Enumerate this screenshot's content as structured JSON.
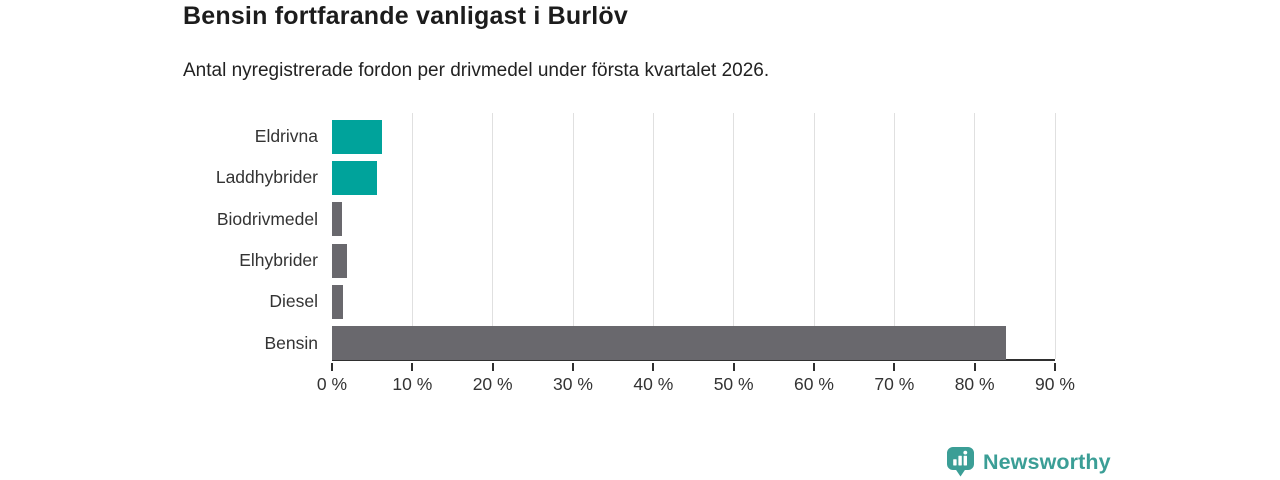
{
  "header": {
    "title": "Bensin fortfarande vanligast i Burlöv",
    "subtitle": "Antal nyregistrerade fordon per drivmedel under första kvartalet 2026."
  },
  "chart_data": {
    "type": "bar",
    "orientation": "horizontal",
    "title": "Bensin fortfarande vanligast i Burlöv",
    "subtitle": "Antal nyregistrerade fordon per drivmedel under första kvartalet 2026.",
    "categories": [
      "Eldrivna",
      "Laddhybrider",
      "Biodrivmedel",
      "Elhybrider",
      "Diesel",
      "Bensin"
    ],
    "values": [
      6.2,
      5.6,
      1.2,
      1.9,
      1.4,
      83.9
    ],
    "unit": "%",
    "bar_colors": [
      "#00a39b",
      "#00a39b",
      "#69686d",
      "#69686d",
      "#69686d",
      "#69686d"
    ],
    "xlim": [
      0,
      90
    ],
    "tick_values": [
      0,
      10,
      20,
      30,
      40,
      50,
      60,
      70,
      80,
      90
    ],
    "tick_labels": [
      "0 %",
      "10 %",
      "20 %",
      "30 %",
      "40 %",
      "50 %",
      "60 %",
      "70 %",
      "80 %",
      "90 %"
    ],
    "xlabel": "",
    "ylabel": "",
    "grid": "vertical",
    "gridline_color": "#e0e0e0",
    "axis_color": "#2f2f2f",
    "legend": "none",
    "accent_color": "#00a39b",
    "neutral_color": "#69686d"
  },
  "branding": {
    "logo_text": "Newsworthy",
    "logo_icon": "newsworthy-speech-bubble-bar-chart-icon",
    "logo_color": "#3b9e96"
  }
}
